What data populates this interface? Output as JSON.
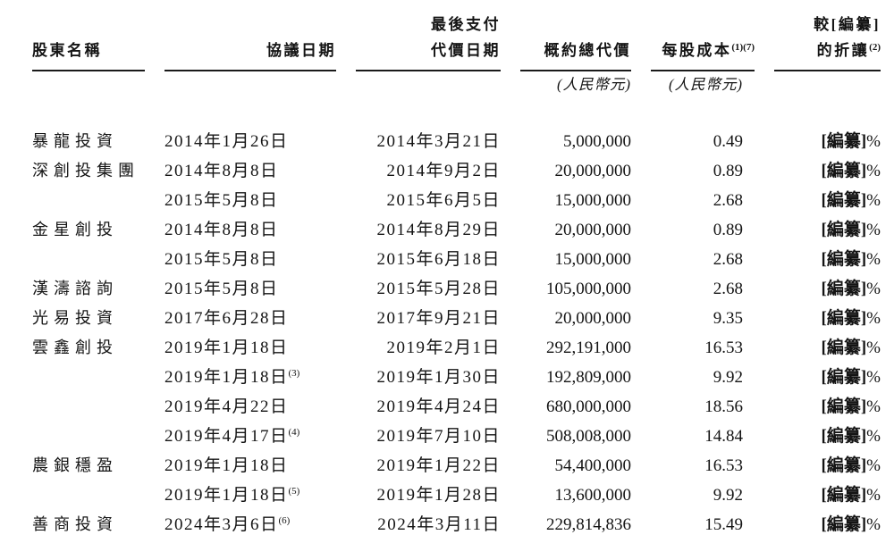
{
  "colors": {
    "text": "#141414",
    "background": "#ffffff",
    "rule": "#1a1a1a"
  },
  "table": {
    "header": {
      "shareholder": "股東名稱",
      "agreement_date": "協議日期",
      "payment_date_line1": "最後支付",
      "payment_date_line2": "代價日期",
      "total_consideration": "概約總代價",
      "total_consideration_unit": "(人民幣元)",
      "cost_per_share": "每股成本",
      "cost_per_share_sup": "(1)(7)",
      "cost_per_share_unit": "(人民幣元)",
      "discount_line1": "較[編纂]",
      "discount_line2": "的折讓",
      "discount_sup": "(2)"
    },
    "rows": [
      {
        "name": "暴龍投資",
        "agreement_date": "2014年1月26日",
        "agreement_sup": "",
        "payment_date": "2014年3月21日",
        "total_consideration": "5,000,000",
        "cost_per_share": "0.49",
        "discount_redacted": "[編纂]",
        "discount_suffix": "%"
      },
      {
        "name": "深創投集團",
        "agreement_date": "2014年8月8日",
        "agreement_sup": "",
        "payment_date": "2014年9月2日",
        "total_consideration": "20,000,000",
        "cost_per_share": "0.89",
        "discount_redacted": "[編纂]",
        "discount_suffix": "%"
      },
      {
        "name": "",
        "agreement_date": "2015年5月8日",
        "agreement_sup": "",
        "payment_date": "2015年6月5日",
        "total_consideration": "15,000,000",
        "cost_per_share": "2.68",
        "discount_redacted": "[編纂]",
        "discount_suffix": "%"
      },
      {
        "name": "金星創投",
        "agreement_date": "2014年8月8日",
        "agreement_sup": "",
        "payment_date": "2014年8月29日",
        "total_consideration": "20,000,000",
        "cost_per_share": "0.89",
        "discount_redacted": "[編纂]",
        "discount_suffix": "%"
      },
      {
        "name": "",
        "agreement_date": "2015年5月8日",
        "agreement_sup": "",
        "payment_date": "2015年6月18日",
        "total_consideration": "15,000,000",
        "cost_per_share": "2.68",
        "discount_redacted": "[編纂]",
        "discount_suffix": "%"
      },
      {
        "name": "漢濤諮詢",
        "agreement_date": "2015年5月8日",
        "agreement_sup": "",
        "payment_date": "2015年5月28日",
        "total_consideration": "105,000,000",
        "cost_per_share": "2.68",
        "discount_redacted": "[編纂]",
        "discount_suffix": "%"
      },
      {
        "name": "光易投資",
        "agreement_date": "2017年6月28日",
        "agreement_sup": "",
        "payment_date": "2017年9月21日",
        "total_consideration": "20,000,000",
        "cost_per_share": "9.35",
        "discount_redacted": "[編纂]",
        "discount_suffix": "%"
      },
      {
        "name": "雲鑫創投",
        "agreement_date": "2019年1月18日",
        "agreement_sup": "",
        "payment_date": "2019年2月1日",
        "total_consideration": "292,191,000",
        "cost_per_share": "16.53",
        "discount_redacted": "[編纂]",
        "discount_suffix": "%"
      },
      {
        "name": "",
        "agreement_date": "2019年1月18日",
        "agreement_sup": "(3)",
        "payment_date": "2019年1月30日",
        "total_consideration": "192,809,000",
        "cost_per_share": "9.92",
        "discount_redacted": "[編纂]",
        "discount_suffix": "%"
      },
      {
        "name": "",
        "agreement_date": "2019年4月22日",
        "agreement_sup": "",
        "payment_date": "2019年4月24日",
        "total_consideration": "680,000,000",
        "cost_per_share": "18.56",
        "discount_redacted": "[編纂]",
        "discount_suffix": "%"
      },
      {
        "name": "",
        "agreement_date": "2019年4月17日",
        "agreement_sup": "(4)",
        "payment_date": "2019年7月10日",
        "total_consideration": "508,008,000",
        "cost_per_share": "14.84",
        "discount_redacted": "[編纂]",
        "discount_suffix": "%"
      },
      {
        "name": "農銀穩盈",
        "agreement_date": "2019年1月18日",
        "agreement_sup": "",
        "payment_date": "2019年1月22日",
        "total_consideration": "54,400,000",
        "cost_per_share": "16.53",
        "discount_redacted": "[編纂]",
        "discount_suffix": "%"
      },
      {
        "name": "",
        "agreement_date": "2019年1月18日",
        "agreement_sup": "(5)",
        "payment_date": "2019年1月28日",
        "total_consideration": "13,600,000",
        "cost_per_share": "9.92",
        "discount_redacted": "[編纂]",
        "discount_suffix": "%"
      },
      {
        "name": "善商投資",
        "agreement_date": "2024年3月6日",
        "agreement_sup": "(6)",
        "payment_date": "2024年3月11日",
        "total_consideration": "229,814,836",
        "cost_per_share": "15.49",
        "discount_redacted": "[編纂]",
        "discount_suffix": "%"
      }
    ]
  }
}
